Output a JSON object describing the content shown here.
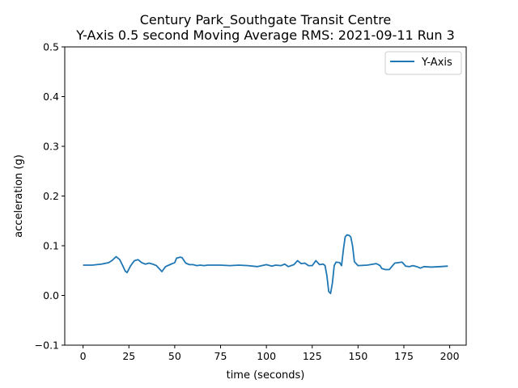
{
  "chart_data": {
    "type": "line",
    "title": "Century Park_Southgate Transit Centre",
    "subtitle": "Y-Axis 0.5 second Moving Average RMS: 2021-09-11 Run 3",
    "xlabel": "time (seconds)",
    "ylabel": "acceleration (g)",
    "xlim": [
      -10,
      209
    ],
    "ylim": [
      -0.1,
      0.5
    ],
    "xticks": [
      0,
      25,
      50,
      75,
      100,
      125,
      150,
      175,
      200
    ],
    "yticks": [
      -0.1,
      0.0,
      0.1,
      0.2,
      0.3,
      0.4,
      0.5
    ],
    "xtick_labels": [
      "0",
      "25",
      "50",
      "75",
      "100",
      "125",
      "150",
      "175",
      "200"
    ],
    "ytick_labels": [
      "−0.1",
      "0.0",
      "0.1",
      "0.2",
      "0.3",
      "0.4",
      "0.5"
    ],
    "grid": false,
    "legend": "top-right",
    "series": [
      {
        "name": "Y-Axis",
        "color": "#1f77b4",
        "x": [
          0,
          5,
          10,
          14,
          16,
          18,
          20,
          22,
          23,
          24,
          26,
          28,
          30,
          32,
          34,
          36,
          38,
          40,
          42,
          43,
          45,
          48,
          50,
          51,
          53,
          54,
          56,
          58,
          60,
          62,
          64,
          66,
          68,
          70,
          75,
          80,
          85,
          90,
          95,
          100,
          103,
          105,
          108,
          110,
          112,
          115,
          117,
          119,
          121,
          123,
          125,
          127,
          129,
          131,
          132,
          133,
          134,
          135,
          136,
          137,
          138,
          140,
          141,
          142,
          143,
          144,
          145,
          146,
          147,
          148,
          150,
          155,
          160,
          162,
          163,
          165,
          167,
          170,
          172,
          174,
          176,
          178,
          180,
          182,
          184,
          186,
          190,
          195,
          199
        ],
        "y": [
          0.061,
          0.061,
          0.063,
          0.066,
          0.071,
          0.078,
          0.072,
          0.057,
          0.049,
          0.046,
          0.06,
          0.07,
          0.072,
          0.066,
          0.063,
          0.065,
          0.063,
          0.06,
          0.052,
          0.048,
          0.058,
          0.063,
          0.066,
          0.075,
          0.077,
          0.076,
          0.065,
          0.062,
          0.062,
          0.06,
          0.061,
          0.06,
          0.061,
          0.061,
          0.061,
          0.06,
          0.061,
          0.06,
          0.058,
          0.062,
          0.059,
          0.061,
          0.06,
          0.063,
          0.058,
          0.062,
          0.07,
          0.064,
          0.065,
          0.06,
          0.06,
          0.07,
          0.062,
          0.063,
          0.06,
          0.04,
          0.008,
          0.004,
          0.025,
          0.06,
          0.067,
          0.066,
          0.06,
          0.092,
          0.118,
          0.122,
          0.121,
          0.118,
          0.1,
          0.068,
          0.06,
          0.061,
          0.064,
          0.06,
          0.054,
          0.052,
          0.052,
          0.065,
          0.066,
          0.067,
          0.059,
          0.058,
          0.06,
          0.058,
          0.055,
          0.058,
          0.057,
          0.058,
          0.059
        ]
      }
    ]
  }
}
